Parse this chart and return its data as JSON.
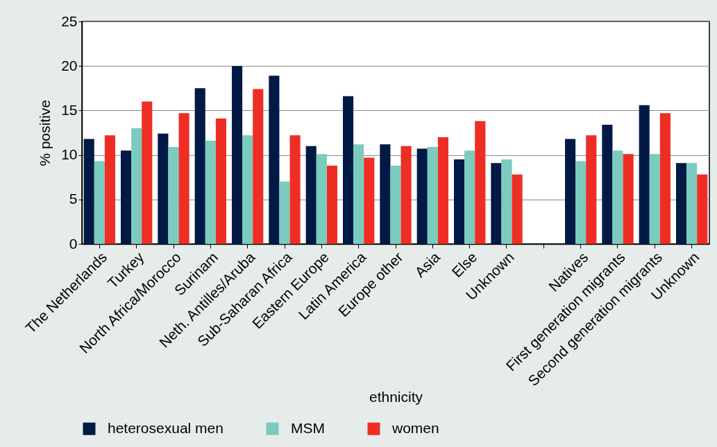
{
  "chart_data": {
    "type": "bar",
    "xlabel": "ethnicity",
    "ylabel": "% positive",
    "categories": [
      "The Netherlands",
      "Turkey",
      "North Africa/Morocco",
      "Surinam",
      "Neth. Antilles/Aruba",
      "Sub-Saharan Africa",
      "Eastern Europe",
      "Latin America",
      "Europe other",
      "Asia",
      "Else",
      "Unknown",
      null,
      "Natives",
      "First generation migrants",
      "Second generation migrants",
      "Unknown"
    ],
    "series": [
      {
        "name": "heterosexual men",
        "color": "#001a45",
        "values": [
          11.8,
          10.5,
          12.4,
          17.5,
          20.0,
          18.9,
          11.0,
          16.6,
          11.2,
          10.7,
          9.5,
          9.1,
          null,
          11.8,
          13.4,
          15.6,
          9.1
        ]
      },
      {
        "name": "MSM",
        "color": "#7bcbbf",
        "values": [
          9.3,
          13.0,
          10.9,
          11.6,
          12.2,
          7.0,
          10.1,
          11.2,
          8.8,
          10.9,
          10.5,
          9.5,
          null,
          9.3,
          10.5,
          10.1,
          9.1
        ]
      },
      {
        "name": "women",
        "color": "#ee2e24",
        "values": [
          12.2,
          16.0,
          14.7,
          14.1,
          17.4,
          12.2,
          8.8,
          9.7,
          11.0,
          12.0,
          13.8,
          7.8,
          null,
          12.2,
          10.1,
          14.7,
          7.8
        ]
      }
    ],
    "ylim": [
      0,
      25
    ],
    "yticks": [
      0,
      5,
      10,
      15,
      20,
      25
    ],
    "grid": "y",
    "legend": "bottom"
  }
}
